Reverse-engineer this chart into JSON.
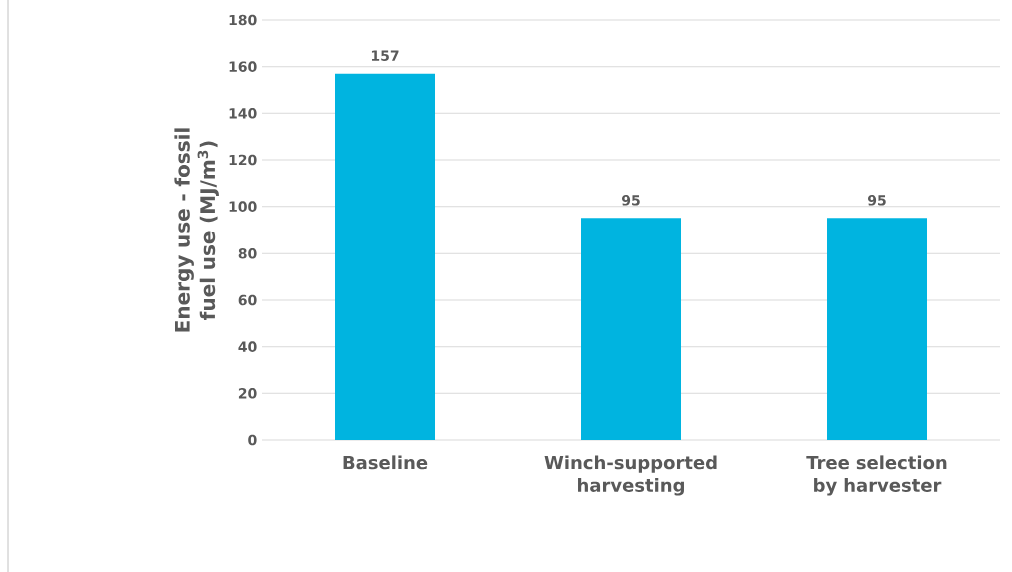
{
  "chart_data": {
    "type": "bar",
    "ylabel": "Energy use - fossil fuel use (MJ/m$^{3}$)",
    "categories": [
      "Baseline",
      "Winch-supported harvesting",
      "Tree selection by harvester"
    ],
    "values": [
      157,
      95,
      95
    ],
    "color": "#00b4e0",
    "ylim": [
      0,
      180
    ],
    "yticks": [
      0,
      20,
      40,
      60,
      80,
      100,
      120,
      140,
      160,
      180
    ],
    "grid": "y",
    "data_labels": true
  }
}
